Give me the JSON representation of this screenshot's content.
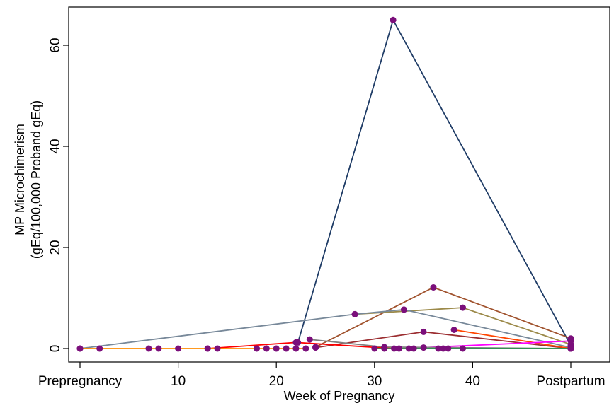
{
  "chart_data": {
    "type": "line",
    "xlabel": "Week of Pregnancy",
    "ylabel": [
      "MP Microchimerism",
      "(gEq/100,000 Proband gEq)"
    ],
    "x_ticks": [
      {
        "value": 0,
        "label": "Prepregnancy"
      },
      {
        "value": 10,
        "label": "10"
      },
      {
        "value": 20,
        "label": "20"
      },
      {
        "value": 30,
        "label": "30"
      },
      {
        "value": 40,
        "label": "40"
      },
      {
        "value": 50,
        "label": "Postpartum"
      }
    ],
    "y_ticks": [
      0,
      20,
      40,
      60
    ],
    "xlim": [
      0,
      50
    ],
    "ylim": [
      -1.5,
      67
    ],
    "grid": false,
    "marker_color": "#7b0f7b",
    "series": [
      {
        "color": "#1f3c66",
        "x": [
          22.2,
          31.9,
          50
        ],
        "y": [
          1.2,
          65,
          0.6
        ]
      },
      {
        "color": "#a0522d",
        "x": [
          24,
          36,
          50
        ],
        "y": [
          0.3,
          12.1,
          2
        ]
      },
      {
        "color": "#9c8a4a",
        "x": [
          28,
          39,
          50
        ],
        "y": [
          6.8,
          8.1,
          0.8
        ]
      },
      {
        "color": "#778899",
        "x": [
          0,
          28,
          33,
          50
        ],
        "y": [
          0,
          6.8,
          7.7,
          0.2
        ]
      },
      {
        "color": "#9b2d30",
        "x": [
          24,
          35,
          50
        ],
        "y": [
          0.2,
          3.3,
          0
        ]
      },
      {
        "color": "#ff4500",
        "x": [
          38.1,
          50
        ],
        "y": [
          3.7,
          0
        ]
      },
      {
        "color": "#ff00ff",
        "x": [
          35,
          50
        ],
        "y": [
          0.2,
          1.5
        ]
      },
      {
        "color": "#808080",
        "x": [
          23.4,
          31,
          50
        ],
        "y": [
          1.8,
          0.3,
          0
        ]
      },
      {
        "color": "#ff0000",
        "x": [
          13,
          22,
          32,
          50
        ],
        "y": [
          0,
          1.2,
          0,
          0
        ]
      },
      {
        "color": "#ff8c00",
        "x": [
          0,
          2,
          7,
          8,
          10,
          13,
          14,
          18,
          19,
          20,
          21,
          22,
          23
        ],
        "y": [
          0,
          0,
          0,
          0,
          0,
          0,
          0,
          0,
          0,
          0,
          0,
          0,
          0
        ]
      },
      {
        "color": "#32cd32",
        "x": [
          34,
          36.5,
          37.5,
          50
        ],
        "y": [
          0,
          0,
          0,
          0
        ]
      },
      {
        "color": "#2e8b57",
        "x": [
          30,
          31,
          32.5,
          33.5,
          37,
          39,
          50
        ],
        "y": [
          0,
          0,
          0,
          0,
          0,
          0,
          0
        ]
      }
    ]
  }
}
